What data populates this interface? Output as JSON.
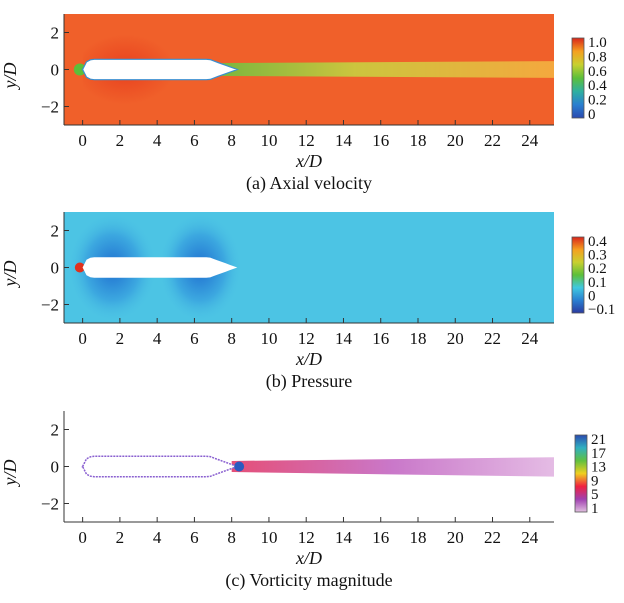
{
  "chart_data": [
    {
      "type": "heatmap",
      "title": "(a) Axial velocity",
      "xlabel": "x/D",
      "ylabel": "y/D",
      "xlim": [
        -1,
        25.3
      ],
      "ylim": [
        -3,
        3
      ],
      "xticks": [
        0,
        2,
        4,
        6,
        8,
        10,
        12,
        14,
        16,
        18,
        20,
        22,
        24
      ],
      "yticks": [
        2,
        0,
        -2
      ],
      "colorbar": {
        "ticks": [
          "1.0",
          "0.8",
          "0.6",
          "0.4",
          "0.2",
          "0"
        ],
        "range": [
          0,
          1.0
        ],
        "colors": [
          "#d9261c",
          "#f5a020",
          "#c8d030",
          "#5cbf3a",
          "#2fb0a0",
          "#2a7fd0",
          "#2a4ab0"
        ]
      },
      "background_color": "#f0602a"
    },
    {
      "type": "heatmap",
      "title": "(b) Pressure",
      "xlabel": "x/D",
      "ylabel": "y/D",
      "xlim": [
        -1,
        25.3
      ],
      "ylim": [
        -3,
        3
      ],
      "xticks": [
        0,
        2,
        4,
        6,
        8,
        10,
        12,
        14,
        16,
        18,
        20,
        22,
        24
      ],
      "yticks": [
        2,
        0,
        -2
      ],
      "colorbar": {
        "ticks": [
          "0.4",
          "0.3",
          "0.2",
          "0.1",
          "0",
          "−0.1"
        ],
        "range": [
          -0.1,
          0.4
        ],
        "colors": [
          "#d9261c",
          "#f5a020",
          "#c8d030",
          "#5cbf3a",
          "#40c8e0",
          "#2a7fd0",
          "#2a3aa0"
        ]
      },
      "background_color": "#4cc4e4"
    },
    {
      "type": "heatmap",
      "title": "(c) Vorticity magnitude",
      "xlabel": "x/D",
      "ylabel": "y/D",
      "xlim": [
        -1,
        25.3
      ],
      "ylim": [
        -3,
        3
      ],
      "xticks": [
        0,
        2,
        4,
        6,
        8,
        10,
        12,
        14,
        16,
        18,
        20,
        22,
        24
      ],
      "yticks": [
        2,
        0,
        -2
      ],
      "colorbar": {
        "ticks": [
          "21",
          "17",
          "13",
          "9",
          "5",
          "1"
        ],
        "range": [
          1,
          21
        ],
        "colors": [
          "#2a4ab0",
          "#30b0c0",
          "#60c040",
          "#f0d020",
          "#f02040",
          "#a040b0",
          "#e0c0e0"
        ]
      },
      "background_color": "#ffffff"
    }
  ]
}
